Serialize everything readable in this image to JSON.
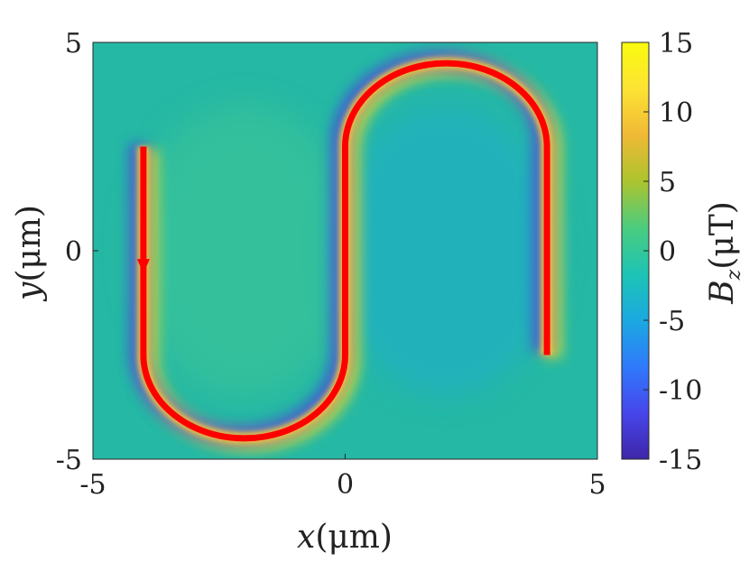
{
  "chart_data": {
    "type": "heatmap",
    "x_ticks": [
      "-5",
      "0",
      "5"
    ],
    "y_ticks": [
      "-5",
      "0",
      "5"
    ],
    "xlabel": {
      "symbol": "x",
      "unit": "(μm)"
    },
    "ylabel": {
      "symbol": "y",
      "unit": "(μm)"
    },
    "xlim": [
      -5,
      5
    ],
    "ylim": [
      -5,
      5
    ],
    "grid": false,
    "colorbar": {
      "label": {
        "symbol": "B",
        "subscript": "z",
        "unit": "(μT)"
      },
      "ticks": [
        "15",
        "10",
        "5",
        "0",
        "-5",
        "-10",
        "-15"
      ],
      "range": [
        -15,
        15
      ],
      "colormap": "parula"
    },
    "background_value": 0,
    "wire_path": {
      "description_values": "serpentine conductor path (x, y in μm)",
      "segments": [
        {
          "kind": "line",
          "from": [
            -4,
            2.5
          ],
          "to": [
            -4,
            -2.5
          ]
        },
        {
          "kind": "arc",
          "center": [
            -2,
            -2.5
          ],
          "radius": 2,
          "from_deg": 180,
          "to_deg": 360,
          "direction": "down-around"
        },
        {
          "kind": "line",
          "from": [
            0,
            -2.5
          ],
          "to": [
            0,
            2.5
          ]
        },
        {
          "kind": "arc",
          "center": [
            2,
            2.5
          ],
          "radius": 2,
          "from_deg": 180,
          "to_deg": 0,
          "direction": "up-around"
        },
        {
          "kind": "line",
          "from": [
            4,
            2.5
          ],
          "to": [
            4,
            -2.5
          ]
        }
      ],
      "current_arrow": {
        "at": [
          -4,
          -0.5
        ],
        "direction": "down"
      }
    }
  },
  "colors": {
    "wire": "#ff0000",
    "background_field": "#25b8a4",
    "positive_field": "#f0e020",
    "negative_field": "#3a4fe0",
    "colormap_stops": [
      "#3e26a8",
      "#4746eb",
      "#2f7afb",
      "#1ba9e0",
      "#1dc4b4",
      "#4bcc7f",
      "#acc42e",
      "#f0b935",
      "#fde334",
      "#f9fb0e"
    ]
  }
}
